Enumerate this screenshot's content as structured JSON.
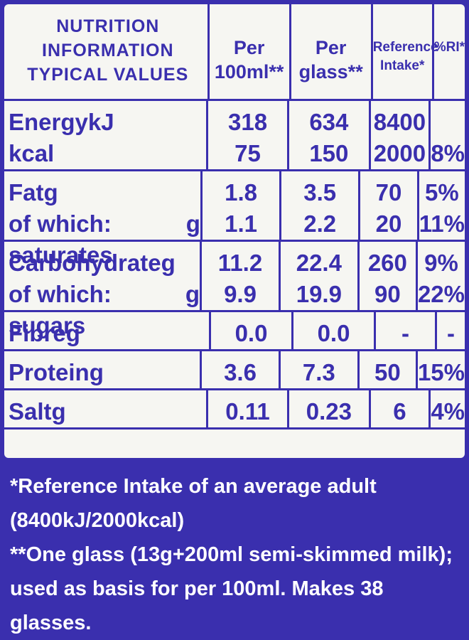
{
  "header": {
    "title_lines": [
      "NUTRITION",
      "INFORMATION",
      "TYPICAL VALUES"
    ],
    "columns": [
      "Per 100ml**",
      "Per glass**",
      "Reference Intake*",
      "%RI*"
    ]
  },
  "groups": [
    {
      "lines": [
        {
          "label": "Energy",
          "unit": "kJ",
          "per_100ml": "318",
          "per_glass": "634",
          "ri": "8400"
        },
        {
          "unit": "kcal",
          "per_100ml": "75",
          "per_glass": "150",
          "ri": "2000",
          "pct": "8%"
        }
      ]
    },
    {
      "lines": [
        {
          "label": "Fat",
          "unit": "g",
          "per_100ml": "1.8",
          "per_glass": "3.5",
          "ri": "70",
          "pct": "5%"
        },
        {
          "label": "of which: saturates",
          "unit": "g",
          "per_100ml": "1.1",
          "per_glass": "2.2",
          "ri": "20",
          "pct": "11%"
        }
      ]
    },
    {
      "lines": [
        {
          "label": "Carbohydrate",
          "unit": "g",
          "per_100ml": "11.2",
          "per_glass": "22.4",
          "ri": "260",
          "pct": "9%"
        },
        {
          "label": "of which: sugars",
          "unit": "g",
          "per_100ml": "9.9",
          "per_glass": "19.9",
          "ri": "90",
          "pct": "22%"
        }
      ]
    },
    {
      "lines": [
        {
          "label": "Fibre",
          "unit": "g",
          "per_100ml": "0.0",
          "per_glass": "0.0",
          "ri": "-",
          "pct": "-"
        }
      ]
    },
    {
      "lines": [
        {
          "label": "Protein",
          "unit": "g",
          "per_100ml": "3.6",
          "per_glass": "7.3",
          "ri": "50",
          "pct": "15%"
        }
      ]
    },
    {
      "lines": [
        {
          "label": "Salt",
          "unit": "g",
          "per_100ml": "0.11",
          "per_glass": "0.23",
          "ri": "6",
          "pct": "4%"
        }
      ]
    }
  ],
  "footnotes": [
    "*Reference Intake of an average adult (8400kJ/2000kcal)",
    "**One glass (13g+200ml semi-skimmed milk); used as basis for per 100ml. Makes 38 glasses."
  ]
}
